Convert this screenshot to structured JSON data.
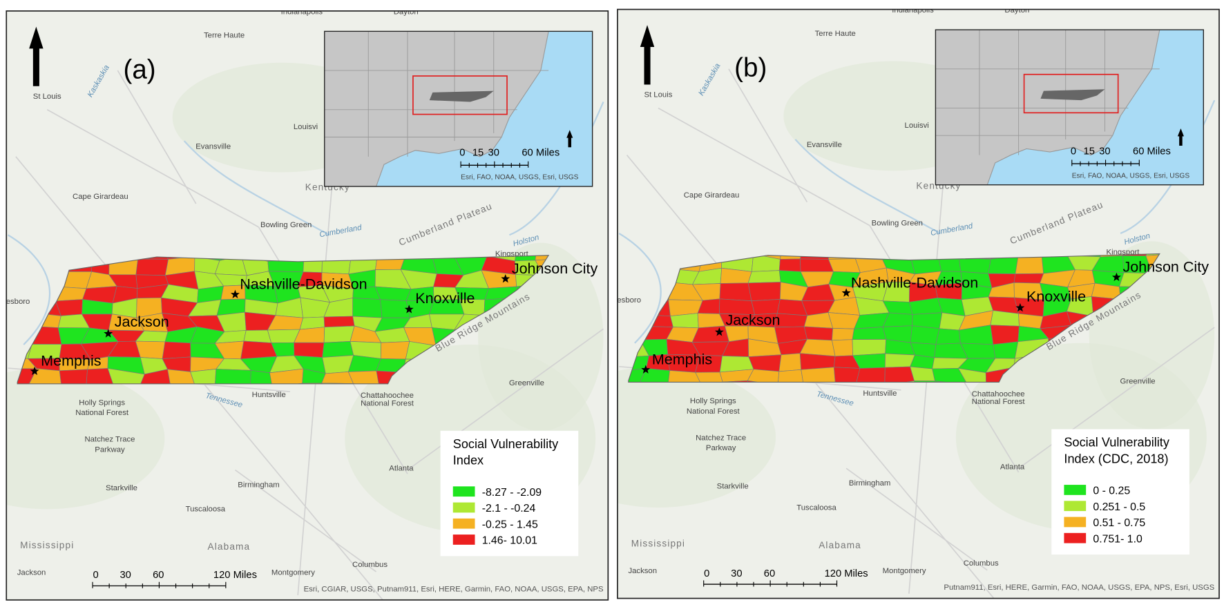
{
  "panels": [
    {
      "label": "(a)",
      "legend": {
        "title": [
          "Social Vulnerability",
          "Index"
        ],
        "entries": [
          {
            "label": "-8.27 - -2.09",
            "color": "#1fe41f"
          },
          {
            "label": "-2.1 - -0.24",
            "color": "#aee833"
          },
          {
            "label": "-0.25 - 1.45",
            "color": "#f5b122"
          },
          {
            "label": "1.46- 10.01",
            "color": "#ec2020"
          }
        ]
      },
      "inset": {
        "scale_labels": [
          "0",
          "15",
          "30",
          "60 Miles"
        ],
        "attribution": "Esri, FAO, NOAA, USGS, Esri, USGS"
      },
      "scale_labels": [
        "0",
        "30",
        "60",
        "120 Miles"
      ],
      "attribution": "Esri, CGIAR, USGS, Putnam911, Esri, HERE, Garmin, FAO, NOAA, USGS, EPA, NPS",
      "cities": [
        "Memphis",
        "Jackson",
        "Nashville-Davidson",
        "Knoxville",
        "Johnson City"
      ]
    },
    {
      "label": "(b)",
      "legend": {
        "title": [
          "Social Vulnerability",
          "Index (CDC, 2018)"
        ],
        "entries": [
          {
            "label": "0 - 0.25",
            "color": "#1fe41f"
          },
          {
            "label": "0.251 - 0.5",
            "color": "#aee833"
          },
          {
            "label": "0.51 - 0.75",
            "color": "#f5b122"
          },
          {
            "label": "0.751- 1.0",
            "color": "#ec2020"
          }
        ]
      },
      "inset": {
        "scale_labels": [
          "0",
          "15",
          "30",
          "60 Miles"
        ],
        "attribution": "Esri, FAO, NOAA, USGS, Esri, USGS"
      },
      "scale_labels": [
        "0",
        "30",
        "60",
        "120 Miles"
      ],
      "attribution": "Putnam911, Esri, HERE, Garmin, FAO, NOAA, USGS, EPA, NPS, Esri, USGS",
      "cities": [
        "Memphis",
        "Jackson",
        "Nashville-Davidson",
        "Knoxville",
        "Johnson City"
      ]
    }
  ],
  "basemap_places": [
    "Indianapolis",
    "Dayton",
    "Terre Haute",
    "St Louis",
    "Kaskaskia",
    "Louisvi",
    "Evansville",
    "Kentucky",
    "Cape Girardeau",
    "Bowling Green",
    "Cumberland",
    "Cumberland Plateau",
    "Holston",
    "Kingsport",
    "Huntsville",
    "Holly Springs",
    "National Forest",
    "Natchez Trace",
    "Parkway",
    "Tennessee",
    "Chattahoochee",
    "National Forest",
    "Greenville",
    "Starkville",
    "Birmingham",
    "Tuscaloosa",
    "Atlanta",
    "Mississippi",
    "Alabama",
    "Jackson",
    "Montgomery",
    "Columbus",
    "Blue Ridge Mountains",
    "nesboro"
  ]
}
